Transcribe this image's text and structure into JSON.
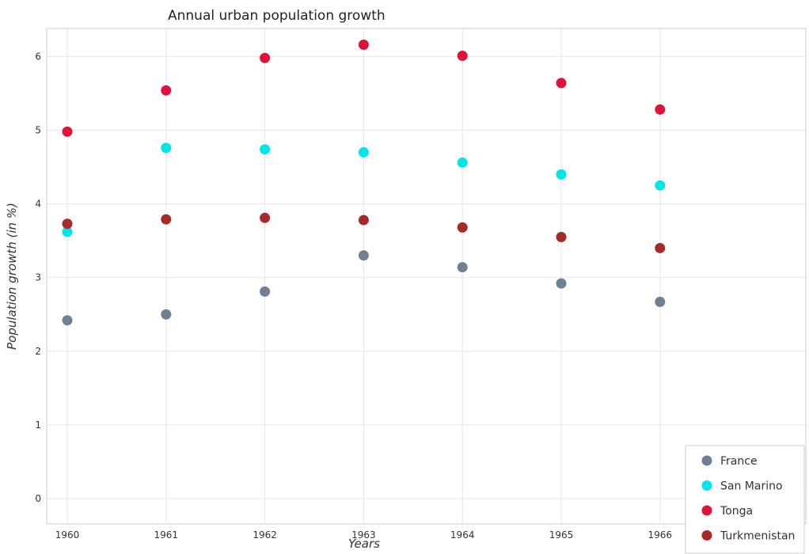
{
  "chart_data": {
    "type": "scatter",
    "title": "Annual urban population growth",
    "xlabel": "Years",
    "ylabel": "Population growth (in %)",
    "categories": [
      "1960",
      "1961",
      "1962",
      "1963",
      "1964",
      "1965",
      "1966"
    ],
    "ylim": [
      0,
      6.4
    ],
    "yticks": [
      "0",
      "1",
      "2",
      "3",
      "4",
      "5",
      "6"
    ],
    "grid": true,
    "legend_position": "bottom-right",
    "series": [
      {
        "name": "France",
        "color": "#708090",
        "values": [
          2.42,
          2.5,
          2.81,
          3.3,
          3.14,
          2.92,
          2.67
        ]
      },
      {
        "name": "San Marino",
        "color": "#00e5e5",
        "values": [
          3.62,
          4.76,
          4.74,
          4.7,
          4.56,
          4.4,
          4.25
        ]
      },
      {
        "name": "Tonga",
        "color": "#dc143c",
        "values": [
          4.98,
          5.54,
          5.98,
          6.16,
          6.01,
          5.64,
          5.28
        ]
      },
      {
        "name": "Turkmenistan",
        "color": "#a52a2a",
        "values": [
          3.73,
          3.79,
          3.81,
          3.78,
          3.68,
          3.55,
          3.4
        ]
      }
    ]
  }
}
